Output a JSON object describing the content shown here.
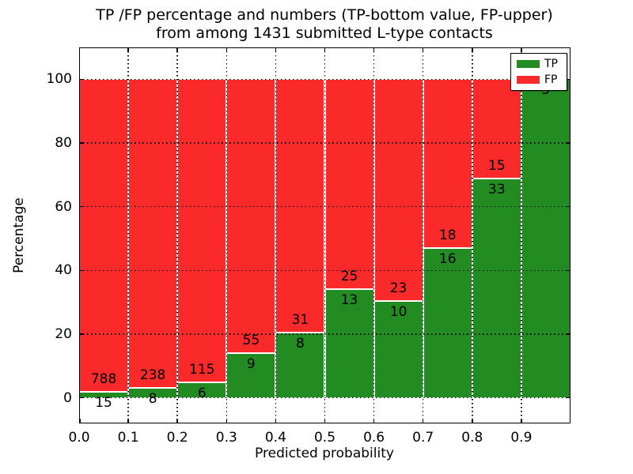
{
  "figure": {
    "title_line1": "TP /FP percentage and numbers (TP-bottom value, FP-upper)",
    "title_line2": "from among 1431 submitted L-type contacts",
    "xlabel": "Predicted probability",
    "ylabel": "Percentage"
  },
  "legend": {
    "position": "upper right",
    "items": [
      {
        "label": "TP",
        "color": "#228b22"
      },
      {
        "label": "FP",
        "color": "#fb2a2a"
      }
    ]
  },
  "chart_data": {
    "type": "bar",
    "stacked": true,
    "normalized": "each bar normalized to 100%",
    "title": "TP /FP percentage and numbers (TP-bottom value, FP-upper) from among 1431 submitted L-type contacts",
    "xlabel": "Predicted probability",
    "ylabel": "Percentage",
    "total_contacts": 1431,
    "bin_width": 0.1,
    "categories": [
      "0.0",
      "0.1",
      "0.2",
      "0.3",
      "0.4",
      "0.5",
      "0.6",
      "0.7",
      "0.8",
      "0.9"
    ],
    "series": [
      {
        "name": "TP",
        "color": "#228b22",
        "values": [
          15,
          8,
          6,
          9,
          8,
          13,
          10,
          16,
          33,
          5
        ]
      },
      {
        "name": "FP",
        "color": "#fb2a2a",
        "values": [
          788,
          238,
          115,
          55,
          31,
          25,
          23,
          18,
          15,
          0
        ]
      }
    ],
    "tp_percent_of_bar": [
      1.87,
      3.25,
      4.96,
      14.06,
      20.51,
      34.21,
      30.3,
      47.06,
      68.75,
      100.0
    ],
    "ylim": [
      -8,
      110
    ],
    "xlim": [
      0,
      1
    ],
    "yticks": [
      "0",
      "20",
      "40",
      "60",
      "80",
      "100"
    ],
    "xticks": [
      "0.0",
      "0.1",
      "0.2",
      "0.3",
      "0.4",
      "0.5",
      "0.6",
      "0.7",
      "0.8",
      "0.9"
    ],
    "grid": "dotted black, drawn above bars",
    "bar_edge_color": "#ffffff",
    "legend_position": "upper right"
  }
}
